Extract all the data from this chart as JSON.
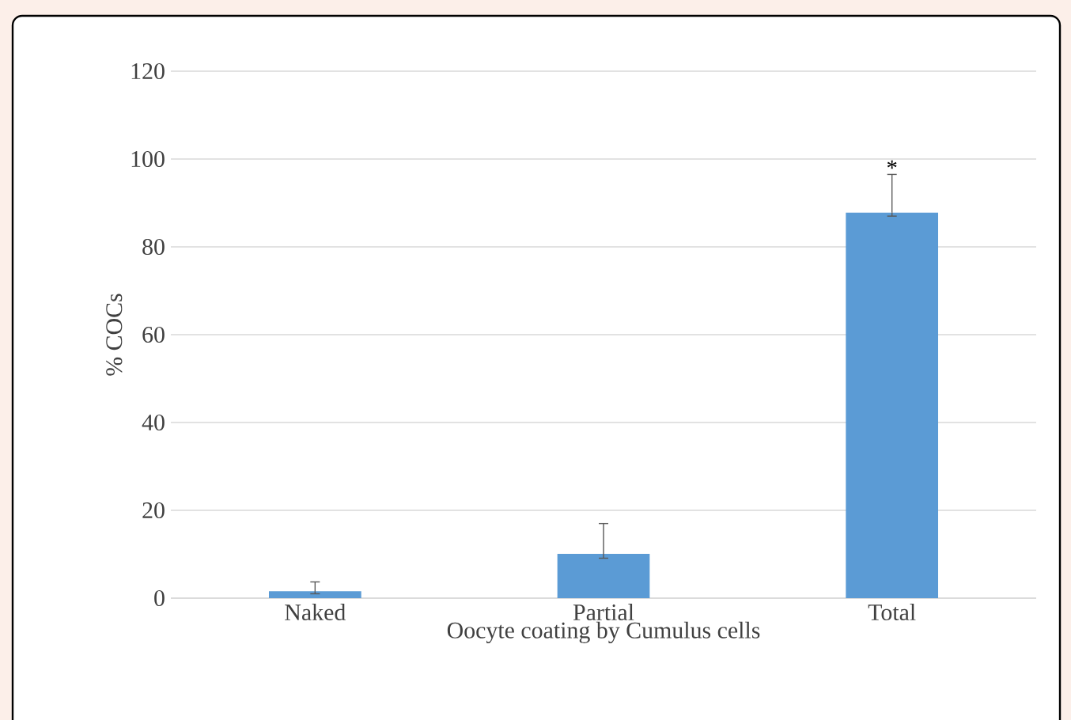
{
  "chart_data": {
    "type": "bar",
    "xlabel": "Oocyte coating by Cumulus cells",
    "ylabel": "% COCs",
    "categories": [
      "Naked",
      "Partial",
      "Total"
    ],
    "values": [
      1.6,
      10.1,
      87.8
    ],
    "errors": [
      [
        1,
        3.7
      ],
      [
        9.1,
        17
      ],
      [
        87,
        96.5
      ]
    ],
    "color": "#5b9bd5",
    "ylim": [
      0,
      120
    ],
    "yticks": [
      0,
      20,
      40,
      60,
      80,
      100,
      120
    ],
    "grid": "y",
    "annotations": [
      {
        "text": "*",
        "x": "Total",
        "y": 98
      }
    ]
  }
}
